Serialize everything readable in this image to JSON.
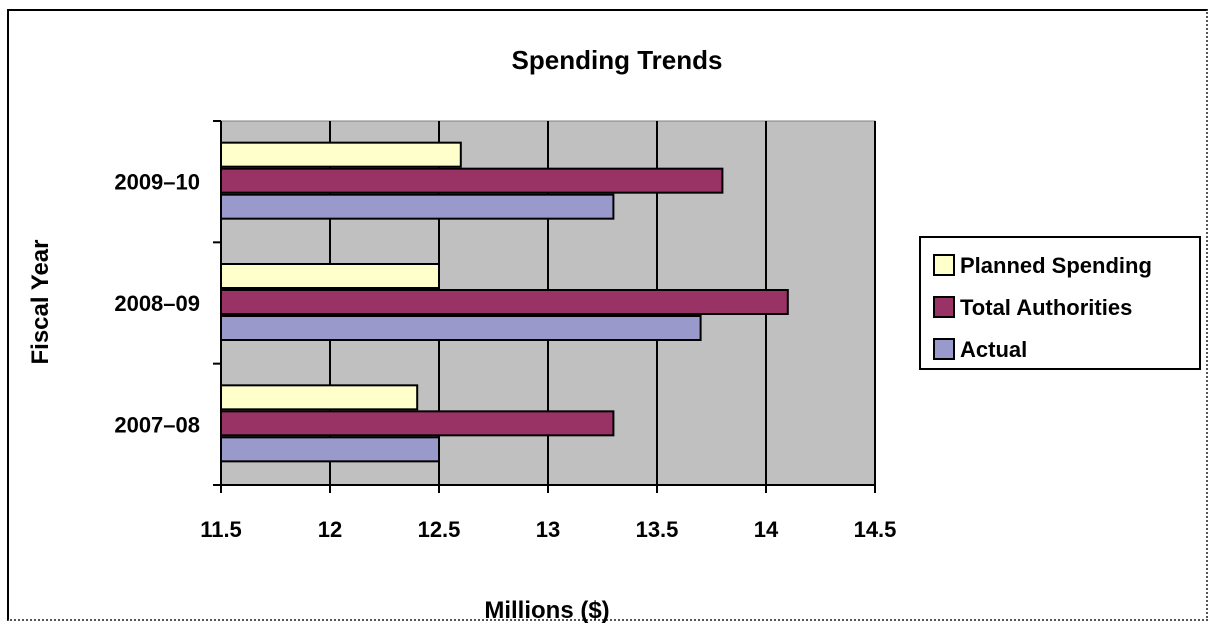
{
  "chart_data": {
    "type": "bar",
    "orientation": "horizontal",
    "title": "Spending Trends",
    "xlabel": "Millions ($)",
    "ylabel": "Fiscal Year",
    "categories": [
      "2007–08",
      "2008–09",
      "2009–10"
    ],
    "series": [
      {
        "name": "Planned Spending",
        "values": [
          12.4,
          12.5,
          12.6
        ],
        "color": "#FFFFCC"
      },
      {
        "name": "Total Authorities",
        "values": [
          13.3,
          14.1,
          13.8
        ],
        "color": "#993366"
      },
      {
        "name": "Actual",
        "values": [
          12.5,
          13.7,
          13.3
        ],
        "color": "#9999CC"
      }
    ],
    "xlim": [
      11.5,
      14.5
    ],
    "xticks": [
      "11.5",
      "12",
      "12.5",
      "13",
      "13.5",
      "14",
      "14.5"
    ],
    "grid": "vertical",
    "plot_background": "#C0C0C0",
    "legend_position": "right"
  }
}
